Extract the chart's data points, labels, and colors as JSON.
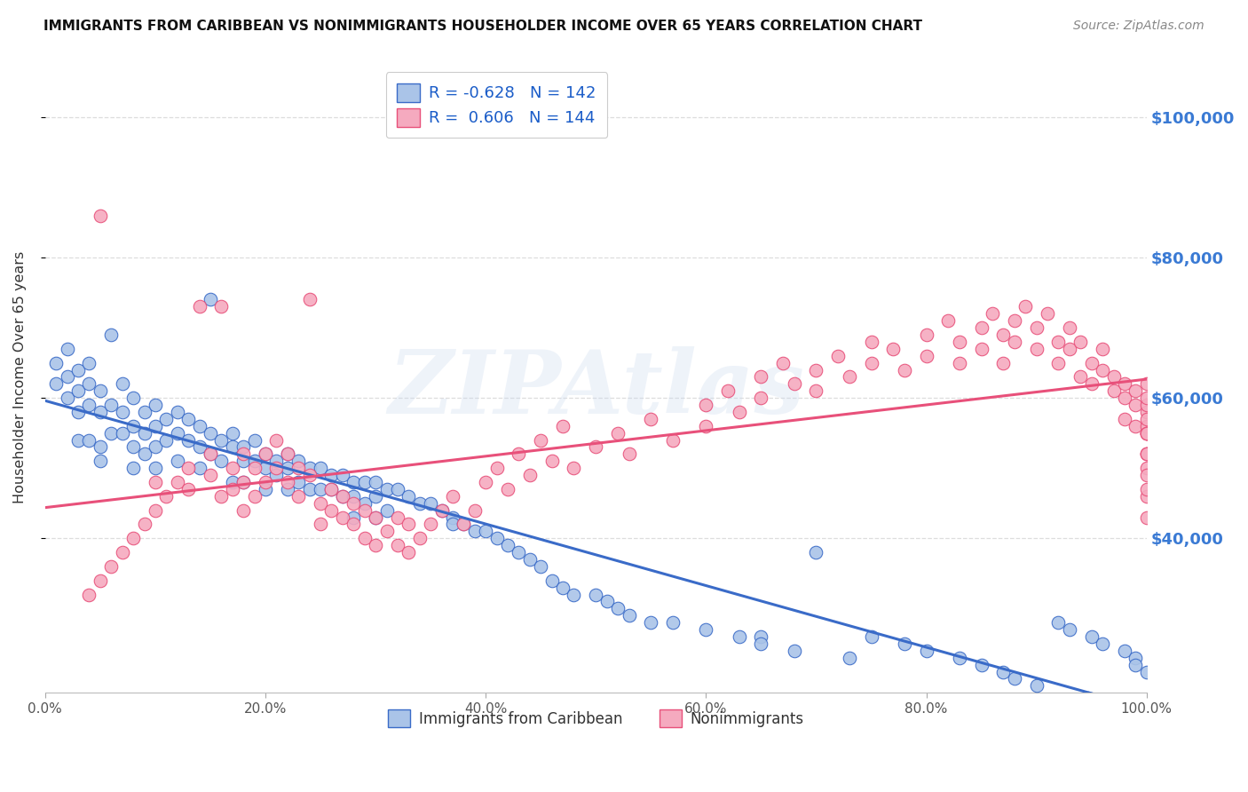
{
  "title": "IMMIGRANTS FROM CARIBBEAN VS NONIMMIGRANTS HOUSEHOLDER INCOME OVER 65 YEARS CORRELATION CHART",
  "source": "Source: ZipAtlas.com",
  "ylabel": "Householder Income Over 65 years",
  "blue_R": -0.628,
  "blue_N": 142,
  "pink_R": 0.606,
  "pink_N": 144,
  "blue_color": "#aac4e8",
  "pink_color": "#f5aabf",
  "blue_line_color": "#3a6bc8",
  "pink_line_color": "#e8507a",
  "right_axis_color": "#3a7ad4",
  "background_color": "#ffffff",
  "grid_color": "#dddddd",
  "watermark": "ZIPAtlas",
  "legend_label_blue": "Immigrants from Caribbean",
  "legend_label_pink": "Nonimmigrants",
  "xmin": 0.0,
  "xmax": 1.0,
  "ymin": 18000,
  "ymax": 108000,
  "yticks": [
    40000,
    60000,
    80000,
    100000
  ],
  "blue_scatter_x": [
    0.01,
    0.01,
    0.02,
    0.02,
    0.02,
    0.03,
    0.03,
    0.03,
    0.03,
    0.04,
    0.04,
    0.04,
    0.04,
    0.05,
    0.05,
    0.05,
    0.05,
    0.06,
    0.06,
    0.06,
    0.07,
    0.07,
    0.07,
    0.08,
    0.08,
    0.08,
    0.08,
    0.09,
    0.09,
    0.09,
    0.1,
    0.1,
    0.1,
    0.1,
    0.11,
    0.11,
    0.12,
    0.12,
    0.12,
    0.13,
    0.13,
    0.14,
    0.14,
    0.14,
    0.15,
    0.15,
    0.15,
    0.16,
    0.16,
    0.17,
    0.17,
    0.17,
    0.18,
    0.18,
    0.18,
    0.19,
    0.19,
    0.2,
    0.2,
    0.2,
    0.21,
    0.21,
    0.22,
    0.22,
    0.22,
    0.23,
    0.23,
    0.24,
    0.24,
    0.25,
    0.25,
    0.26,
    0.26,
    0.27,
    0.27,
    0.28,
    0.28,
    0.28,
    0.29,
    0.29,
    0.3,
    0.3,
    0.3,
    0.31,
    0.31,
    0.32,
    0.33,
    0.34,
    0.35,
    0.36,
    0.37,
    0.37,
    0.38,
    0.39,
    0.4,
    0.41,
    0.42,
    0.43,
    0.44,
    0.45,
    0.46,
    0.47,
    0.48,
    0.5,
    0.51,
    0.52,
    0.53,
    0.55,
    0.57,
    0.6,
    0.63,
    0.65,
    0.65,
    0.68,
    0.7,
    0.73,
    0.75,
    0.78,
    0.8,
    0.83,
    0.85,
    0.87,
    0.88,
    0.9,
    0.92,
    0.93,
    0.95,
    0.96,
    0.98,
    0.99,
    0.99,
    1.0
  ],
  "blue_scatter_y": [
    65000,
    62000,
    67000,
    63000,
    60000,
    64000,
    61000,
    58000,
    54000,
    65000,
    62000,
    59000,
    54000,
    61000,
    58000,
    53000,
    51000,
    69000,
    59000,
    55000,
    62000,
    58000,
    55000,
    60000,
    56000,
    53000,
    50000,
    58000,
    55000,
    52000,
    59000,
    56000,
    53000,
    50000,
    57000,
    54000,
    58000,
    55000,
    51000,
    57000,
    54000,
    56000,
    53000,
    50000,
    74000,
    55000,
    52000,
    54000,
    51000,
    55000,
    53000,
    48000,
    53000,
    51000,
    48000,
    54000,
    51000,
    52000,
    50000,
    47000,
    51000,
    49000,
    52000,
    50000,
    47000,
    51000,
    48000,
    50000,
    47000,
    50000,
    47000,
    49000,
    47000,
    49000,
    46000,
    48000,
    46000,
    43000,
    48000,
    45000,
    48000,
    46000,
    43000,
    47000,
    44000,
    47000,
    46000,
    45000,
    45000,
    44000,
    43000,
    42000,
    42000,
    41000,
    41000,
    40000,
    39000,
    38000,
    37000,
    36000,
    34000,
    33000,
    32000,
    32000,
    31000,
    30000,
    29000,
    28000,
    28000,
    27000,
    26000,
    26000,
    25000,
    24000,
    38000,
    23000,
    26000,
    25000,
    24000,
    23000,
    22000,
    21000,
    20000,
    19000,
    28000,
    27000,
    26000,
    25000,
    24000,
    23000,
    22000,
    21000
  ],
  "pink_scatter_x": [
    0.04,
    0.05,
    0.05,
    0.06,
    0.07,
    0.08,
    0.09,
    0.1,
    0.1,
    0.11,
    0.12,
    0.13,
    0.13,
    0.14,
    0.15,
    0.15,
    0.16,
    0.16,
    0.17,
    0.17,
    0.18,
    0.18,
    0.18,
    0.19,
    0.19,
    0.2,
    0.2,
    0.21,
    0.21,
    0.22,
    0.22,
    0.23,
    0.23,
    0.24,
    0.24,
    0.25,
    0.25,
    0.26,
    0.26,
    0.27,
    0.27,
    0.28,
    0.28,
    0.29,
    0.29,
    0.3,
    0.3,
    0.31,
    0.32,
    0.32,
    0.33,
    0.33,
    0.34,
    0.35,
    0.36,
    0.37,
    0.38,
    0.39,
    0.4,
    0.41,
    0.42,
    0.43,
    0.44,
    0.45,
    0.46,
    0.47,
    0.48,
    0.5,
    0.52,
    0.53,
    0.55,
    0.57,
    0.6,
    0.6,
    0.62,
    0.63,
    0.65,
    0.65,
    0.67,
    0.68,
    0.7,
    0.7,
    0.72,
    0.73,
    0.75,
    0.75,
    0.77,
    0.78,
    0.8,
    0.8,
    0.82,
    0.83,
    0.83,
    0.85,
    0.85,
    0.86,
    0.87,
    0.87,
    0.88,
    0.88,
    0.89,
    0.9,
    0.9,
    0.91,
    0.92,
    0.92,
    0.93,
    0.93,
    0.94,
    0.94,
    0.95,
    0.95,
    0.96,
    0.96,
    0.97,
    0.97,
    0.98,
    0.98,
    0.98,
    0.99,
    0.99,
    0.99,
    1.0,
    1.0,
    1.0,
    1.0,
    1.0,
    1.0,
    1.0,
    1.0,
    1.0,
    1.0,
    1.0,
    1.0,
    1.0,
    1.0,
    1.0,
    1.0,
    1.0,
    1.0
  ],
  "pink_scatter_y": [
    32000,
    34000,
    86000,
    36000,
    38000,
    40000,
    42000,
    44000,
    48000,
    46000,
    48000,
    50000,
    47000,
    73000,
    52000,
    49000,
    46000,
    73000,
    50000,
    47000,
    52000,
    48000,
    44000,
    50000,
    46000,
    52000,
    48000,
    54000,
    50000,
    52000,
    48000,
    50000,
    46000,
    74000,
    49000,
    45000,
    42000,
    47000,
    44000,
    46000,
    43000,
    45000,
    42000,
    44000,
    40000,
    43000,
    39000,
    41000,
    43000,
    39000,
    42000,
    38000,
    40000,
    42000,
    44000,
    46000,
    42000,
    44000,
    48000,
    50000,
    47000,
    52000,
    49000,
    54000,
    51000,
    56000,
    50000,
    53000,
    55000,
    52000,
    57000,
    54000,
    59000,
    56000,
    61000,
    58000,
    63000,
    60000,
    65000,
    62000,
    64000,
    61000,
    66000,
    63000,
    68000,
    65000,
    67000,
    64000,
    69000,
    66000,
    71000,
    68000,
    65000,
    70000,
    67000,
    72000,
    69000,
    65000,
    71000,
    68000,
    73000,
    70000,
    67000,
    72000,
    68000,
    65000,
    70000,
    67000,
    63000,
    68000,
    65000,
    62000,
    67000,
    64000,
    61000,
    63000,
    60000,
    57000,
    62000,
    59000,
    56000,
    61000,
    58000,
    55000,
    62000,
    59000,
    56000,
    60000,
    55000,
    52000,
    57000,
    55000,
    52000,
    50000,
    55000,
    52000,
    49000,
    46000,
    43000,
    47000,
    44000,
    48000,
    45000,
    42000
  ]
}
